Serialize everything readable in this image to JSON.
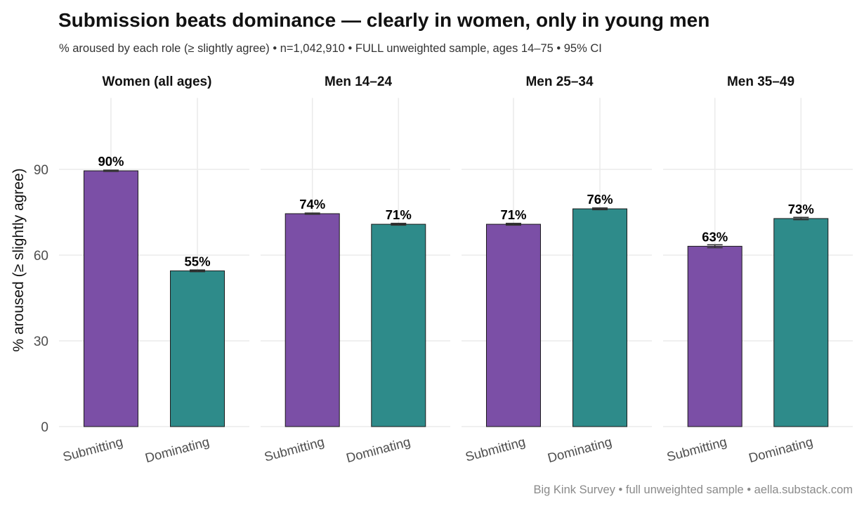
{
  "colors": {
    "background": "#ffffff",
    "grid": "#ebebeb",
    "submitting": "#7b4fa6",
    "dominating": "#2e8b8a",
    "bar_outline": "#1a1a1a",
    "errorbar": "#333333"
  },
  "chart_data": {
    "type": "bar",
    "title": "Submission beats dominance — clearly in women, only in young men",
    "subtitle": "% aroused by each role (≥ slightly agree)  •  n=1,042,910  •  FULL unweighted sample, ages 14–75  •  95% CI",
    "caption": "Big Kink Survey  •  full unweighted sample  •  aella.substack.com",
    "ylabel": "% aroused (≥ slightly agree)",
    "xlabel": "",
    "ylim": [
      0,
      115
    ],
    "yticks": [
      0,
      30,
      60,
      90
    ],
    "grid": true,
    "legend": "none",
    "categories": [
      "Submitting",
      "Dominating"
    ],
    "facets": [
      {
        "title": "Women (all ages)",
        "bars": [
          {
            "category": "Submitting",
            "value": 89.5,
            "ci": [
              89.3,
              89.7
            ],
            "label": "90%"
          },
          {
            "category": "Dominating",
            "value": 54.5,
            "ci": [
              54.2,
              54.8
            ],
            "label": "55%"
          }
        ]
      },
      {
        "title": "Men 14–24",
        "bars": [
          {
            "category": "Submitting",
            "value": 74.5,
            "ci": [
              74.3,
              74.7
            ],
            "label": "74%"
          },
          {
            "category": "Dominating",
            "value": 70.8,
            "ci": [
              70.5,
              71.1
            ],
            "label": "71%"
          }
        ]
      },
      {
        "title": "Men 25–34",
        "bars": [
          {
            "category": "Submitting",
            "value": 70.8,
            "ci": [
              70.5,
              71.1
            ],
            "label": "71%"
          },
          {
            "category": "Dominating",
            "value": 76.2,
            "ci": [
              75.9,
              76.5
            ],
            "label": "76%"
          }
        ]
      },
      {
        "title": "Men 35–49",
        "bars": [
          {
            "category": "Submitting",
            "value": 63.1,
            "ci": [
              62.6,
              63.6
            ],
            "label": "63%"
          },
          {
            "category": "Dominating",
            "value": 72.8,
            "ci": [
              72.4,
              73.2
            ],
            "label": "73%"
          }
        ]
      }
    ]
  }
}
